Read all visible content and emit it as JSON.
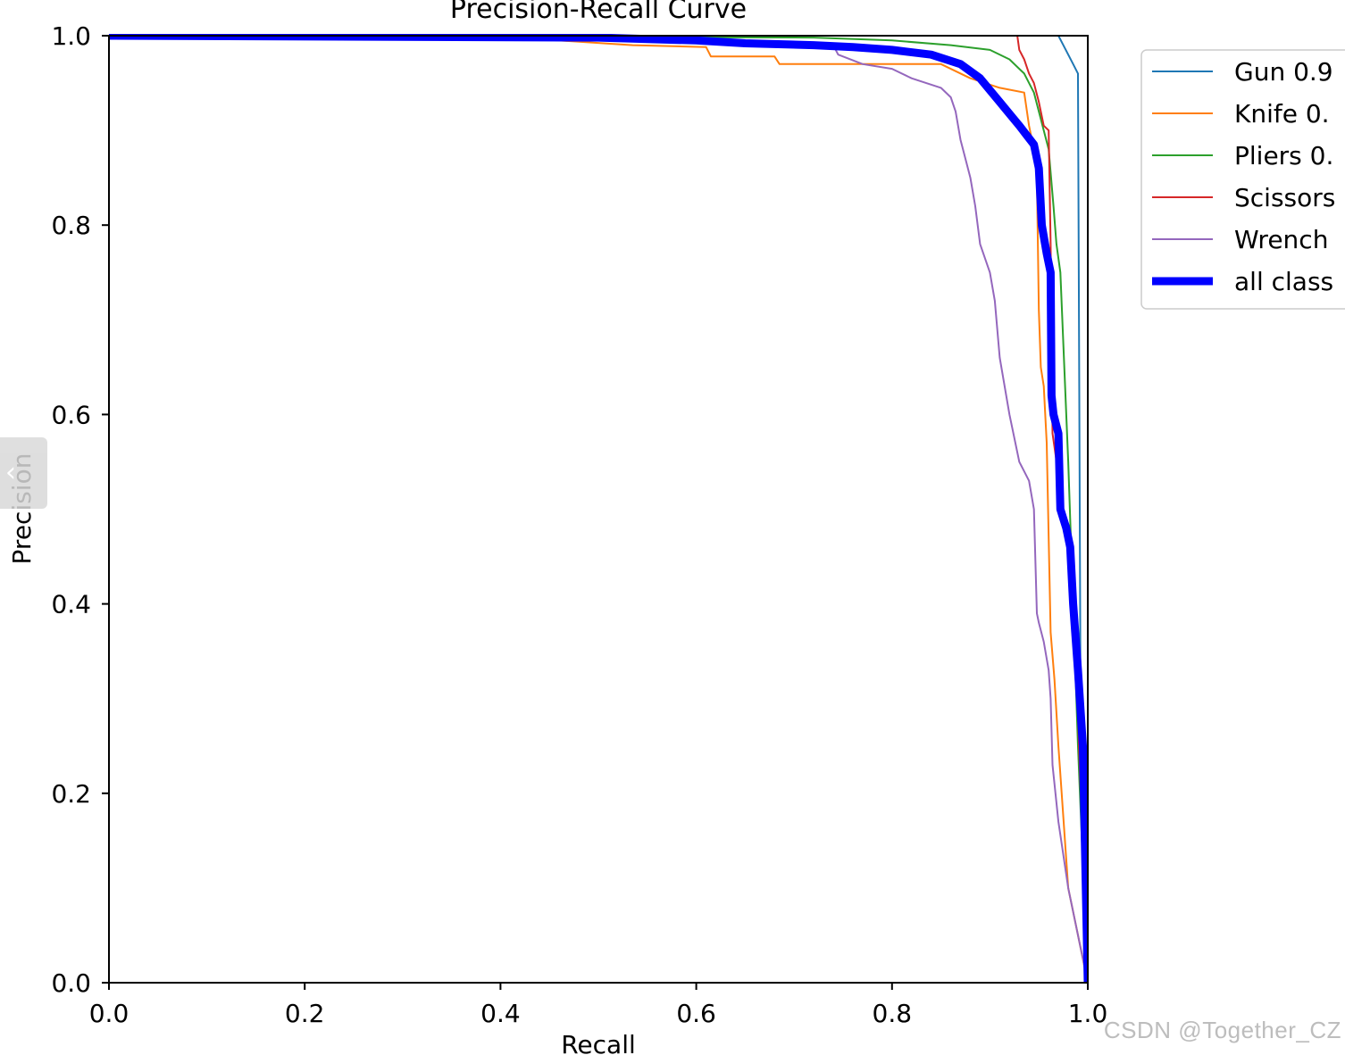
{
  "chart_data": {
    "type": "line",
    "title": "Precision-Recall Curve",
    "xlabel": "Recall",
    "ylabel": "Precision",
    "xlim": [
      0,
      1
    ],
    "ylim": [
      0,
      1
    ],
    "xticks": [
      "0.0",
      "0.2",
      "0.4",
      "0.6",
      "0.8",
      "1.0"
    ],
    "yticks": [
      "0.0",
      "0.2",
      "0.4",
      "0.6",
      "0.8",
      "1.0"
    ],
    "grid": false,
    "legend_position": "outside top-right",
    "series": [
      {
        "name": "Gun 0.9",
        "color": "#1f77b4",
        "bold": false,
        "points": [
          [
            0,
            1
          ],
          [
            0.97,
            1
          ],
          [
            0.975,
            0.99
          ],
          [
            0.985,
            0.97
          ],
          [
            0.99,
            0.96
          ],
          [
            0.993,
            0.2
          ],
          [
            1.0,
            0.0
          ]
        ]
      },
      {
        "name": "Knife 0.",
        "color": "#ff7f0e",
        "bold": false,
        "points": [
          [
            0,
            1
          ],
          [
            0.4,
            0.999
          ],
          [
            0.535,
            0.99
          ],
          [
            0.61,
            0.988
          ],
          [
            0.615,
            0.978
          ],
          [
            0.68,
            0.978
          ],
          [
            0.685,
            0.97
          ],
          [
            0.85,
            0.97
          ],
          [
            0.88,
            0.955
          ],
          [
            0.91,
            0.945
          ],
          [
            0.935,
            0.94
          ],
          [
            0.94,
            0.905
          ],
          [
            0.945,
            0.88
          ],
          [
            0.948,
            0.85
          ],
          [
            0.95,
            0.71
          ],
          [
            0.952,
            0.65
          ],
          [
            0.955,
            0.63
          ],
          [
            0.958,
            0.57
          ],
          [
            0.962,
            0.37
          ],
          [
            0.966,
            0.32
          ],
          [
            0.97,
            0.25
          ],
          [
            0.98,
            0.1
          ],
          [
            1.0,
            0.0
          ]
        ]
      },
      {
        "name": "Pliers 0.",
        "color": "#2ca02c",
        "bold": false,
        "points": [
          [
            0,
            1
          ],
          [
            0.72,
            0.998
          ],
          [
            0.8,
            0.995
          ],
          [
            0.86,
            0.99
          ],
          [
            0.9,
            0.985
          ],
          [
            0.92,
            0.975
          ],
          [
            0.935,
            0.96
          ],
          [
            0.945,
            0.94
          ],
          [
            0.955,
            0.9
          ],
          [
            0.96,
            0.88
          ],
          [
            0.965,
            0.82
          ],
          [
            0.968,
            0.78
          ],
          [
            0.972,
            0.75
          ],
          [
            0.98,
            0.55
          ],
          [
            0.99,
            0.25
          ],
          [
            1.0,
            0.0
          ]
        ]
      },
      {
        "name": "Scissors",
        "color": "#d62728",
        "bold": false,
        "points": [
          [
            0,
            1
          ],
          [
            0.928,
            1
          ],
          [
            0.93,
            0.985
          ],
          [
            0.935,
            0.975
          ],
          [
            0.94,
            0.96
          ],
          [
            0.945,
            0.95
          ],
          [
            0.95,
            0.93
          ],
          [
            0.955,
            0.905
          ],
          [
            0.96,
            0.9
          ],
          [
            0.962,
            0.78
          ],
          [
            0.964,
            0.58
          ],
          [
            0.975,
            0.5
          ],
          [
            0.98,
            0.45
          ],
          [
            0.985,
            0.42
          ],
          [
            0.988,
            0.35
          ],
          [
            0.99,
            0.28
          ],
          [
            1.0,
            0.0
          ]
        ]
      },
      {
        "name": "Wrench",
        "color": "#9467bd",
        "bold": false,
        "points": [
          [
            0,
            1
          ],
          [
            0.2,
            0.999
          ],
          [
            0.24,
            0.996
          ],
          [
            0.6,
            0.996
          ],
          [
            0.74,
            0.99
          ],
          [
            0.745,
            0.98
          ],
          [
            0.77,
            0.97
          ],
          [
            0.8,
            0.965
          ],
          [
            0.82,
            0.955
          ],
          [
            0.85,
            0.945
          ],
          [
            0.86,
            0.935
          ],
          [
            0.865,
            0.92
          ],
          [
            0.87,
            0.89
          ],
          [
            0.875,
            0.87
          ],
          [
            0.88,
            0.85
          ],
          [
            0.885,
            0.82
          ],
          [
            0.89,
            0.78
          ],
          [
            0.9,
            0.75
          ],
          [
            0.905,
            0.72
          ],
          [
            0.91,
            0.66
          ],
          [
            0.92,
            0.6
          ],
          [
            0.93,
            0.55
          ],
          [
            0.94,
            0.53
          ],
          [
            0.945,
            0.5
          ],
          [
            0.948,
            0.39
          ],
          [
            0.95,
            0.38
          ],
          [
            0.955,
            0.36
          ],
          [
            0.96,
            0.33
          ],
          [
            0.962,
            0.3
          ],
          [
            0.964,
            0.23
          ],
          [
            0.97,
            0.17
          ],
          [
            0.98,
            0.1
          ],
          [
            1.0,
            0.0
          ]
        ]
      },
      {
        "name": "all class",
        "color": "#0000ff",
        "bold": true,
        "points": [
          [
            0,
            1
          ],
          [
            0.5,
            0.998
          ],
          [
            0.6,
            0.995
          ],
          [
            0.65,
            0.992
          ],
          [
            0.72,
            0.99
          ],
          [
            0.76,
            0.988
          ],
          [
            0.8,
            0.985
          ],
          [
            0.84,
            0.98
          ],
          [
            0.87,
            0.97
          ],
          [
            0.89,
            0.955
          ],
          [
            0.91,
            0.93
          ],
          [
            0.93,
            0.905
          ],
          [
            0.945,
            0.885
          ],
          [
            0.95,
            0.86
          ],
          [
            0.953,
            0.8
          ],
          [
            0.958,
            0.77
          ],
          [
            0.962,
            0.75
          ],
          [
            0.963,
            0.62
          ],
          [
            0.965,
            0.6
          ],
          [
            0.97,
            0.58
          ],
          [
            0.972,
            0.5
          ],
          [
            0.978,
            0.48
          ],
          [
            0.982,
            0.46
          ],
          [
            0.985,
            0.4
          ],
          [
            0.99,
            0.33
          ],
          [
            0.995,
            0.25
          ],
          [
            1.0,
            0.0
          ]
        ]
      }
    ]
  },
  "side_tab": {
    "glyph": "‹"
  },
  "watermark": "CSDN @Together_CZ"
}
